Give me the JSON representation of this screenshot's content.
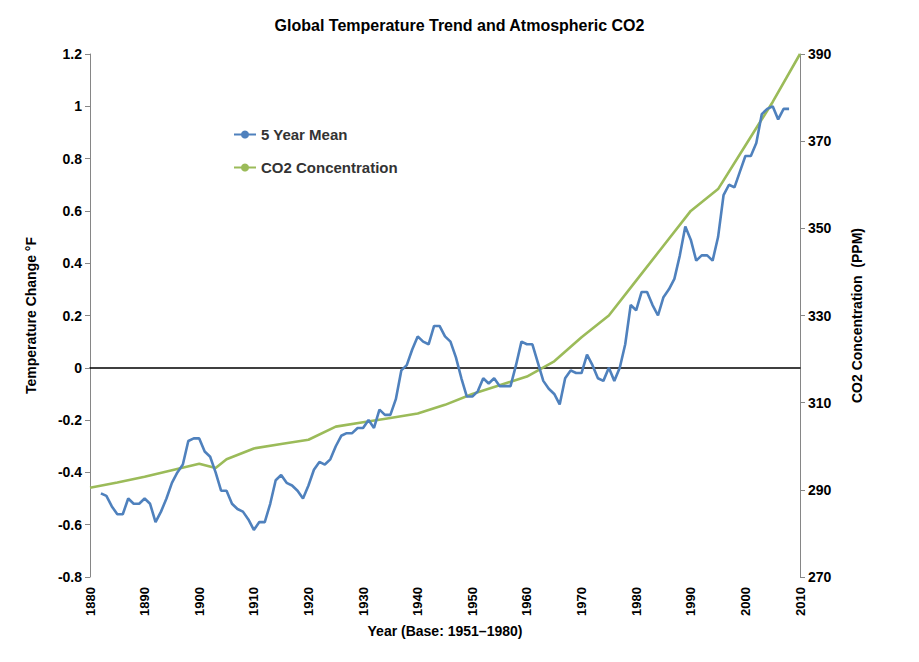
{
  "chart_data": {
    "type": "line",
    "title": "Global Temperature Trend and Atmospheric CO2",
    "x_label": "Year (Base: 1951–1980)",
    "y_label": "Temperature Change °F",
    "y2_label": "CO2 Concentration  (PPM)",
    "xlim": [
      1880,
      2010
    ],
    "xticks": [
      1880,
      1890,
      1900,
      1910,
      1920,
      1930,
      1940,
      1950,
      1960,
      1970,
      1980,
      1990,
      2000,
      2010
    ],
    "ylim": [
      -0.8,
      1.2
    ],
    "yticks": [
      -0.8,
      -0.6,
      -0.4,
      -0.2,
      0,
      0.2,
      0.4,
      0.6,
      0.8,
      1,
      1.2
    ],
    "y2lim": [
      270,
      390
    ],
    "y2ticks": [
      270,
      290,
      310,
      330,
      350,
      370,
      390
    ],
    "grid": false,
    "legend": "upper left",
    "series": [
      {
        "name": "5 Year Mean",
        "color": "#4f81bd",
        "axis": "y",
        "x": [
          1882,
          1883,
          1884,
          1885,
          1886,
          1887,
          1888,
          1889,
          1890,
          1891,
          1892,
          1893,
          1894,
          1895,
          1896,
          1897,
          1898,
          1899,
          1900,
          1901,
          1902,
          1903,
          1904,
          1905,
          1906,
          1907,
          1908,
          1909,
          1910,
          1911,
          1912,
          1913,
          1914,
          1915,
          1916,
          1917,
          1918,
          1919,
          1920,
          1921,
          1922,
          1923,
          1924,
          1925,
          1926,
          1927,
          1928,
          1929,
          1930,
          1931,
          1932,
          1933,
          1934,
          1935,
          1936,
          1937,
          1938,
          1939,
          1940,
          1941,
          1942,
          1943,
          1944,
          1945,
          1946,
          1947,
          1948,
          1949,
          1950,
          1951,
          1952,
          1953,
          1954,
          1955,
          1956,
          1957,
          1958,
          1959,
          1960,
          1961,
          1962,
          1963,
          1964,
          1965,
          1966,
          1967,
          1968,
          1969,
          1970,
          1971,
          1972,
          1973,
          1974,
          1975,
          1976,
          1977,
          1978,
          1979,
          1980,
          1981,
          1982,
          1983,
          1984,
          1985,
          1986,
          1987,
          1988,
          1989,
          1990,
          1991,
          1992,
          1993,
          1994,
          1995,
          1996,
          1997,
          1998,
          1999,
          2000,
          2001,
          2002,
          2003,
          2004,
          2005,
          2006,
          2007,
          2008
        ],
        "values": [
          -0.48,
          -0.49,
          -0.53,
          -0.56,
          -0.56,
          -0.5,
          -0.52,
          -0.52,
          -0.5,
          -0.52,
          -0.59,
          -0.55,
          -0.5,
          -0.44,
          -0.4,
          -0.37,
          -0.28,
          -0.27,
          -0.27,
          -0.32,
          -0.34,
          -0.4,
          -0.47,
          -0.47,
          -0.52,
          -0.54,
          -0.55,
          -0.58,
          -0.62,
          -0.59,
          -0.59,
          -0.52,
          -0.43,
          -0.41,
          -0.44,
          -0.45,
          -0.47,
          -0.5,
          -0.45,
          -0.39,
          -0.36,
          -0.37,
          -0.35,
          -0.3,
          -0.26,
          -0.25,
          -0.25,
          -0.23,
          -0.23,
          -0.2,
          -0.23,
          -0.16,
          -0.18,
          -0.18,
          -0.12,
          -0.01,
          0.01,
          0.07,
          0.12,
          0.1,
          0.09,
          0.16,
          0.16,
          0.12,
          0.1,
          0.04,
          -0.04,
          -0.11,
          -0.11,
          -0.09,
          -0.04,
          -0.06,
          -0.04,
          -0.07,
          -0.07,
          -0.07,
          0.01,
          0.1,
          0.09,
          0.09,
          0.02,
          -0.05,
          -0.08,
          -0.1,
          -0.14,
          -0.04,
          -0.01,
          -0.02,
          -0.02,
          0.05,
          0.01,
          -0.04,
          -0.05,
          0.0,
          -0.05,
          0.0,
          0.09,
          0.24,
          0.22,
          0.29,
          0.29,
          0.24,
          0.2,
          0.27,
          0.3,
          0.34,
          0.43,
          0.54,
          0.49,
          0.41,
          0.43,
          0.43,
          0.41,
          0.5,
          0.66,
          0.7,
          0.69,
          0.75,
          0.81,
          0.81,
          0.86,
          0.97,
          0.99,
          1.0,
          0.95,
          0.99,
          0.99
        ]
      },
      {
        "name": "CO2 Concentration",
        "color": "#9bbb59",
        "axis": "y2",
        "x": [
          1880,
          1885,
          1890,
          1895,
          1900,
          1903,
          1905,
          1910,
          1915,
          1920,
          1925,
          1930,
          1935,
          1940,
          1945,
          1950,
          1955,
          1960,
          1965,
          1970,
          1975,
          1980,
          1985,
          1990,
          1995,
          2000,
          2005,
          2010
        ],
        "values": [
          290.5,
          291.7,
          293.0,
          294.5,
          296.0,
          295.0,
          297.0,
          299.5,
          300.5,
          301.5,
          304.5,
          305.5,
          306.5,
          307.5,
          309.5,
          312.0,
          314.0,
          316.0,
          319.5,
          325.0,
          330.0,
          338.0,
          346.0,
          354.0,
          359.0,
          369.0,
          379.0,
          390.0
        ]
      }
    ]
  }
}
